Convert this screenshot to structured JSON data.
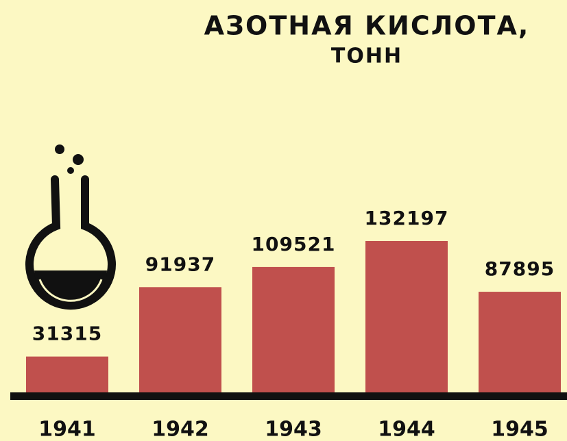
{
  "chart_data": {
    "type": "bar",
    "title": "АЗОТНАЯ КИСЛОТА,",
    "subtitle": "ТОНН",
    "categories": [
      "1941",
      "1942",
      "1943",
      "1944",
      "1945"
    ],
    "values": [
      31315,
      91937,
      109521,
      132197,
      87895
    ],
    "color": "#c0504d"
  }
}
